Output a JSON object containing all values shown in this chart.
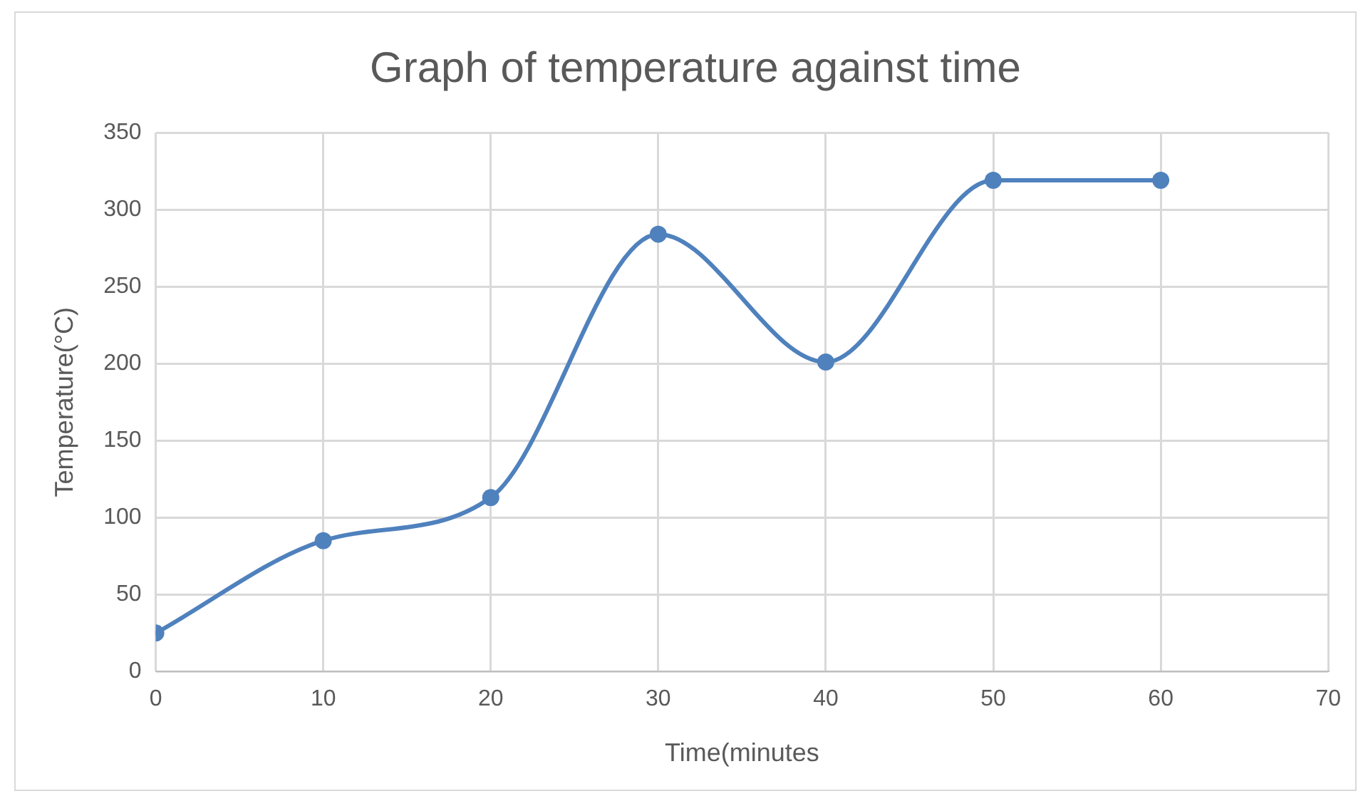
{
  "chart_data": {
    "type": "line",
    "title": "Graph of temperature against time",
    "xlabel": "Time(minutes",
    "ylabel": "Temperature(°C)",
    "x": [
      0,
      10,
      20,
      30,
      40,
      50,
      60
    ],
    "series": [
      {
        "color": "#4f81bd",
        "values": [
          25,
          85,
          113,
          284,
          201,
          319,
          319
        ]
      }
    ],
    "xlim": [
      0,
      70
    ],
    "xticks": [
      0,
      10,
      20,
      30,
      40,
      50,
      60,
      70
    ],
    "ylim": [
      0,
      350
    ],
    "yticks": [
      0,
      50,
      100,
      150,
      200,
      250,
      300,
      350
    ],
    "grid": true,
    "legend": false,
    "marker": "circle",
    "line_style": "solid"
  }
}
